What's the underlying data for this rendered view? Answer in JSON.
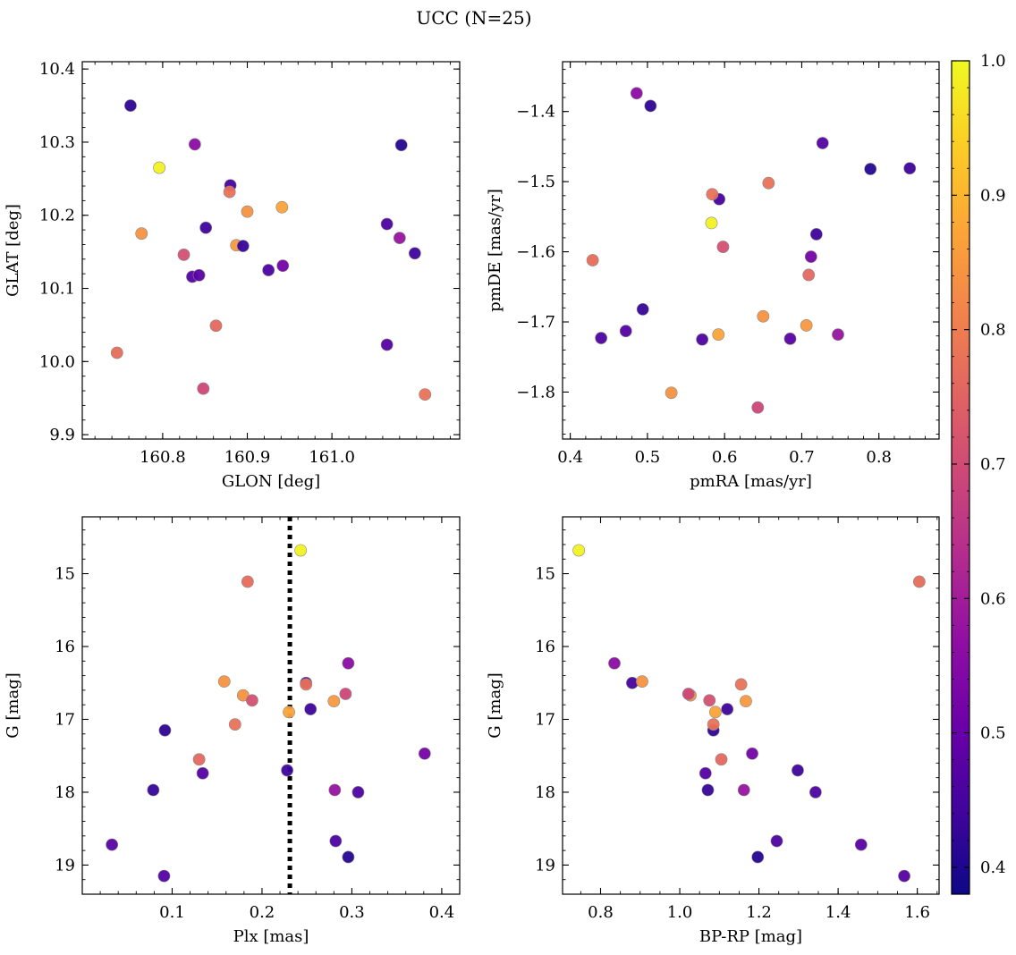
{
  "chart_data": {
    "type": "scatter",
    "title": "UCC (N=25)",
    "colormap": "plasma",
    "colorbar": {
      "range": [
        0.38,
        1.0
      ],
      "ticks": [
        "0.4",
        "0.5",
        "0.6",
        "0.7",
        "0.8",
        "0.9",
        "1.0"
      ],
      "tick_values": [
        0.4,
        0.5,
        0.6,
        0.7,
        0.8,
        0.9,
        1.0
      ]
    },
    "stars": [
      {
        "glon": 160.762,
        "glat": 10.35,
        "pmra": 0.504,
        "pmde": -1.392,
        "plx": 0.092,
        "g": 17.15,
        "bprp": 1.085,
        "p": 0.42
      },
      {
        "glon": 160.838,
        "glat": 10.297,
        "pmra": 0.486,
        "pmde": -1.374,
        "plx": 0.296,
        "g": 16.23,
        "bprp": 0.835,
        "p": 0.56
      },
      {
        "glon": 160.796,
        "glat": 10.265,
        "pmra": 0.583,
        "pmde": -1.559,
        "plx": 0.243,
        "g": 14.68,
        "bprp": 0.745,
        "p": 0.99
      },
      {
        "glon": 161.082,
        "glat": 10.296,
        "pmra": 0.789,
        "pmde": -1.482,
        "plx": 0.296,
        "g": 18.89,
        "bprp": 1.197,
        "p": 0.41
      },
      {
        "glon": 160.88,
        "glat": 10.241,
        "pmra": 0.593,
        "pmde": -1.525,
        "plx": 0.249,
        "g": 16.5,
        "bprp": 0.88,
        "p": 0.45
      },
      {
        "glon": 160.879,
        "glat": 10.232,
        "pmra": 0.584,
        "pmde": -1.518,
        "plx": 0.249,
        "g": 16.52,
        "bprp": 1.155,
        "p": 0.78
      },
      {
        "glon": 160.9,
        "glat": 10.205,
        "pmra": 0.531,
        "pmde": -1.801,
        "plx": 0.158,
        "g": 16.48,
        "bprp": 0.905,
        "p": 0.84
      },
      {
        "glon": 160.941,
        "glat": 10.211,
        "pmra": 0.592,
        "pmde": -1.718,
        "plx": 0.23,
        "g": 16.9,
        "bprp": 1.09,
        "p": 0.87
      },
      {
        "glon": 160.775,
        "glat": 10.175,
        "pmra": 0.65,
        "pmde": -1.692,
        "plx": 0.179,
        "g": 16.67,
        "bprp": 1.027,
        "p": 0.84
      },
      {
        "glon": 160.851,
        "glat": 10.183,
        "pmra": 0.719,
        "pmde": -1.575,
        "plx": 0.254,
        "g": 16.86,
        "bprp": 1.12,
        "p": 0.44
      },
      {
        "glon": 161.065,
        "glat": 10.188,
        "pmra": 0.571,
        "pmde": -1.725,
        "plx": 0.307,
        "g": 18.0,
        "bprp": 1.343,
        "p": 0.46
      },
      {
        "glon": 160.887,
        "glat": 10.159,
        "pmra": 0.706,
        "pmde": -1.705,
        "plx": 0.28,
        "g": 16.75,
        "bprp": 1.167,
        "p": 0.85
      },
      {
        "glon": 160.895,
        "glat": 10.158,
        "pmra": 0.494,
        "pmde": -1.682,
        "plx": 0.079,
        "g": 17.97,
        "bprp": 1.071,
        "p": 0.43
      },
      {
        "glon": 161.08,
        "glat": 10.169,
        "pmra": 0.747,
        "pmde": -1.718,
        "plx": 0.281,
        "g": 17.97,
        "bprp": 1.162,
        "p": 0.58
      },
      {
        "glon": 160.825,
        "glat": 10.146,
        "pmra": 0.598,
        "pmde": -1.593,
        "plx": 0.189,
        "g": 16.74,
        "bprp": 1.075,
        "p": 0.71
      },
      {
        "glon": 161.098,
        "glat": 10.148,
        "pmra": 0.84,
        "pmde": -1.481,
        "plx": 0.228,
        "g": 17.7,
        "bprp": 1.298,
        "p": 0.44
      },
      {
        "glon": 160.925,
        "glat": 10.125,
        "pmra": 0.44,
        "pmde": -1.723,
        "plx": 0.282,
        "g": 18.67,
        "bprp": 1.245,
        "p": 0.46
      },
      {
        "glon": 160.942,
        "glat": 10.131,
        "pmra": 0.712,
        "pmde": -1.607,
        "plx": 0.381,
        "g": 17.47,
        "bprp": 1.183,
        "p": 0.52
      },
      {
        "glon": 160.835,
        "glat": 10.116,
        "pmra": 0.472,
        "pmde": -1.713,
        "plx": 0.134,
        "g": 17.74,
        "bprp": 1.065,
        "p": 0.47
      },
      {
        "glon": 160.843,
        "glat": 10.118,
        "pmra": 0.685,
        "pmde": -1.724,
        "plx": 0.033,
        "g": 18.72,
        "bprp": 1.458,
        "p": 0.48
      },
      {
        "glon": 160.863,
        "glat": 10.049,
        "pmra": 0.709,
        "pmde": -1.633,
        "plx": 0.13,
        "g": 17.55,
        "bprp": 1.105,
        "p": 0.76
      },
      {
        "glon": 160.746,
        "glat": 10.012,
        "pmra": 0.429,
        "pmde": -1.612,
        "plx": 0.184,
        "g": 15.11,
        "bprp": 1.605,
        "p": 0.77
      },
      {
        "glon": 161.065,
        "glat": 10.023,
        "pmra": 0.727,
        "pmde": -1.445,
        "plx": 0.091,
        "g": 19.15,
        "bprp": 1.567,
        "p": 0.47
      },
      {
        "glon": 160.848,
        "glat": 9.963,
        "pmra": 0.643,
        "pmde": -1.822,
        "plx": 0.293,
        "g": 16.65,
        "bprp": 1.022,
        "p": 0.69
      },
      {
        "glon": 161.11,
        "glat": 9.955,
        "pmra": 0.657,
        "pmde": -1.502,
        "plx": 0.17,
        "g": 17.07,
        "bprp": 1.085,
        "p": 0.78
      }
    ],
    "panels": [
      {
        "id": "glon-glat",
        "xkey": "glon",
        "ykey": "glat",
        "xlabel": "GLON [deg]",
        "ylabel": "GLAT [deg]",
        "xlim": [
          160.705,
          161.151
        ],
        "ylim": [
          9.894,
          10.41
        ],
        "y_inverted": false,
        "xticks": [
          "160.8",
          "160.9",
          "161.0"
        ],
        "xtick_values": [
          160.8,
          160.9,
          161.0
        ],
        "xminor": 0.02,
        "yticks": [
          "9.9",
          "10.0",
          "10.1",
          "10.2",
          "10.3",
          "10.4"
        ],
        "ytick_values": [
          9.9,
          10.0,
          10.1,
          10.2,
          10.3,
          10.4
        ],
        "yminor": 0.02
      },
      {
        "id": "pmra-pmde",
        "xkey": "pmra",
        "ykey": "pmde",
        "xlabel": "pmRA [mas/yr]",
        "ylabel": "pmDE [mas/yr]",
        "xlim": [
          0.39,
          0.878
        ],
        "ylim": [
          -1.867,
          -1.329
        ],
        "y_inverted": false,
        "xticks": [
          "0.4",
          "0.5",
          "0.6",
          "0.7",
          "0.8"
        ],
        "xtick_values": [
          0.4,
          0.5,
          0.6,
          0.7,
          0.8
        ],
        "xminor": 0.02,
        "yticks": [
          "−1.8",
          "−1.7",
          "−1.6",
          "−1.5",
          "−1.4"
        ],
        "ytick_values": [
          -1.8,
          -1.7,
          -1.6,
          -1.5,
          -1.4
        ],
        "yminor": 0.02
      },
      {
        "id": "plx-g",
        "xkey": "plx",
        "ykey": "g",
        "xlabel": "Plx [mas]",
        "ylabel": "G [mag]",
        "xlim": [
          0.0,
          0.42
        ],
        "ylim": [
          14.22,
          19.4
        ],
        "y_inverted": true,
        "xticks": [
          "0.1",
          "0.2",
          "0.3",
          "0.4"
        ],
        "xtick_values": [
          0.1,
          0.2,
          0.3,
          0.4
        ],
        "xminor": 0.02,
        "yticks": [
          "15",
          "16",
          "17",
          "18",
          "19"
        ],
        "ytick_values": [
          15,
          16,
          17,
          18,
          19
        ],
        "yminor": 0.2,
        "vline": {
          "x": 0.231,
          "style": "dotted"
        }
      },
      {
        "id": "bprp-g",
        "xkey": "bprp",
        "ykey": "g",
        "xlabel": "BP-RP [mag]",
        "ylabel": "G [mag]",
        "xlim": [
          0.704,
          1.655
        ],
        "ylim": [
          14.22,
          19.4
        ],
        "y_inverted": true,
        "xticks": [
          "0.8",
          "1.0",
          "1.2",
          "1.4",
          "1.6"
        ],
        "xtick_values": [
          0.8,
          1.0,
          1.2,
          1.4,
          1.6
        ],
        "xminor": 0.05,
        "yticks": [
          "15",
          "16",
          "17",
          "18",
          "19"
        ],
        "ytick_values": [
          15,
          16,
          17,
          18,
          19
        ],
        "yminor": 0.2
      }
    ]
  }
}
